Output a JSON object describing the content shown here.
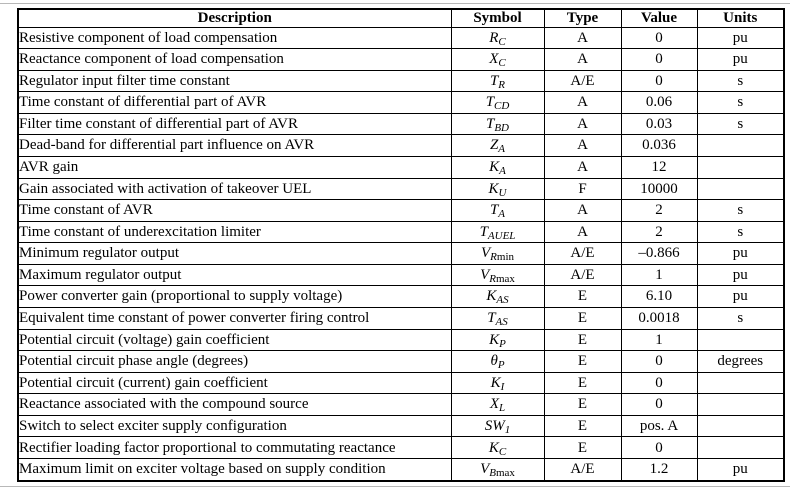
{
  "table": {
    "columns": [
      "Description",
      "Symbol",
      "Type",
      "Value",
      "Units"
    ],
    "rows": [
      {
        "description": "Resistive component of load compensation",
        "symbol": {
          "base": "R",
          "sub": "C",
          "subr": ""
        },
        "type": "A",
        "value": "0",
        "units": "pu"
      },
      {
        "description": "Reactance component of load compensation",
        "symbol": {
          "base": "X",
          "sub": "C",
          "subr": ""
        },
        "type": "A",
        "value": "0",
        "units": "pu"
      },
      {
        "description": "Regulator input filter time constant",
        "symbol": {
          "base": "T",
          "sub": "R",
          "subr": ""
        },
        "type": "A/E",
        "value": "0",
        "units": "s"
      },
      {
        "description": "Time constant of differential part of AVR",
        "symbol": {
          "base": "T",
          "sub": "CD",
          "subr": ""
        },
        "type": "A",
        "value": "0.06",
        "units": "s"
      },
      {
        "description": "Filter time constant of differential part of AVR",
        "symbol": {
          "base": "T",
          "sub": "BD",
          "subr": ""
        },
        "type": "A",
        "value": "0.03",
        "units": "s"
      },
      {
        "description": "Dead-band for differential part influence on AVR",
        "symbol": {
          "base": "Z",
          "sub": "A",
          "subr": ""
        },
        "type": "A",
        "value": "0.036",
        "units": ""
      },
      {
        "description": "AVR gain",
        "symbol": {
          "base": "K",
          "sub": "A",
          "subr": ""
        },
        "type": "A",
        "value": "12",
        "units": ""
      },
      {
        "description": "Gain associated with activation of takeover UEL",
        "symbol": {
          "base": "K",
          "sub": "U",
          "subr": ""
        },
        "type": "F",
        "value": "10000",
        "units": ""
      },
      {
        "description": "Time constant of AVR",
        "symbol": {
          "base": "T",
          "sub": "A",
          "subr": ""
        },
        "type": "A",
        "value": "2",
        "units": "s"
      },
      {
        "description": "Time constant of underexcitation limiter",
        "symbol": {
          "base": "T",
          "sub": "AUEL",
          "subr": ""
        },
        "type": "A",
        "value": "2",
        "units": "s"
      },
      {
        "description": "Minimum regulator output",
        "symbol": {
          "base": "V",
          "sub": "R",
          "subr": "min"
        },
        "type": "A/E",
        "value": "–0.866",
        "units": "pu"
      },
      {
        "description": "Maximum regulator output",
        "symbol": {
          "base": "V",
          "sub": "R",
          "subr": "max"
        },
        "type": "A/E",
        "value": "1",
        "units": "pu"
      },
      {
        "description": "Power converter gain (proportional to supply voltage)",
        "symbol": {
          "base": "K",
          "sub": "AS",
          "subr": ""
        },
        "type": "E",
        "value": "6.10",
        "units": "pu"
      },
      {
        "description": "Equivalent time constant of power converter firing control",
        "symbol": {
          "base": "T",
          "sub": "AS",
          "subr": ""
        },
        "type": "E",
        "value": "0.0018",
        "units": "s"
      },
      {
        "description": "Potential circuit (voltage) gain coefficient",
        "symbol": {
          "base": "K",
          "sub": "P",
          "subr": ""
        },
        "type": "E",
        "value": "1",
        "units": ""
      },
      {
        "description": "Potential circuit phase angle (degrees)",
        "symbol": {
          "base": "θ",
          "sub": "P",
          "subr": ""
        },
        "type": "E",
        "value": "0",
        "units": "degrees"
      },
      {
        "description": "Potential circuit (current) gain coefficient",
        "symbol": {
          "base": "K",
          "sub": "I",
          "subr": ""
        },
        "type": "E",
        "value": "0",
        "units": ""
      },
      {
        "description": "Reactance associated with the compound source",
        "symbol": {
          "base": "X",
          "sub": "L",
          "subr": ""
        },
        "type": "E",
        "value": "0",
        "units": ""
      },
      {
        "description": "Switch to select exciter supply configuration",
        "symbol": {
          "base": "SW",
          "sub": "1",
          "subr": ""
        },
        "type": "E",
        "value": "pos. A",
        "units": ""
      },
      {
        "description": "Rectifier loading factor proportional to commutating reactance",
        "symbol": {
          "base": "K",
          "sub": "C",
          "subr": ""
        },
        "type": "E",
        "value": "0",
        "units": ""
      },
      {
        "description": "Maximum limit on exciter voltage based on supply condition",
        "symbol": {
          "base": "V",
          "sub": "B",
          "subr": "max"
        },
        "type": "A/E",
        "value": "1.2",
        "units": "pu"
      }
    ]
  }
}
